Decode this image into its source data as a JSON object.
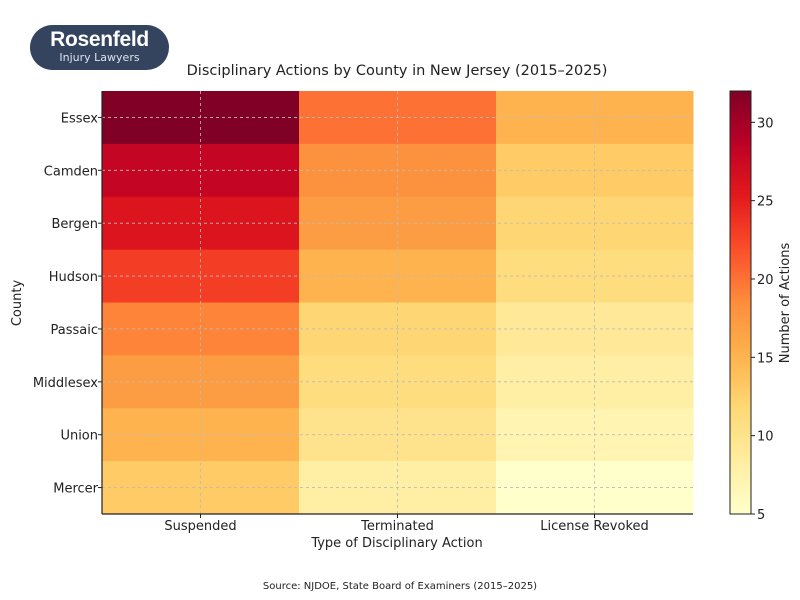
{
  "logo": {
    "name": "Rosenfeld",
    "tagline": "Injury Lawyers"
  },
  "source": "Source: NJDOE, State Board of Examiners (2015–2025)",
  "chart_data": {
    "type": "heatmap",
    "title": "Disciplinary Actions by County in New Jersey (2015–2025)",
    "xlabel": "Type of Disciplinary Action",
    "ylabel": "County",
    "colorbar_label": "Number of Actions",
    "colormap": "YlOrRd",
    "vmin": 5,
    "vmax": 32,
    "colorbar_ticks": [
      5,
      10,
      15,
      20,
      25,
      30
    ],
    "categories": [
      "Suspended",
      "Terminated",
      "License Revoked"
    ],
    "rows": [
      "Essex",
      "Camden",
      "Bergen",
      "Hudson",
      "Passaic",
      "Middlesex",
      "Union",
      "Mercer"
    ],
    "values": [
      [
        32,
        20,
        15
      ],
      [
        28,
        18,
        13
      ],
      [
        26,
        17,
        12
      ],
      [
        23,
        15,
        11
      ],
      [
        19,
        12,
        9
      ],
      [
        17,
        11,
        8
      ],
      [
        15,
        10,
        7
      ],
      [
        13,
        8,
        5
      ]
    ],
    "grid": true
  }
}
